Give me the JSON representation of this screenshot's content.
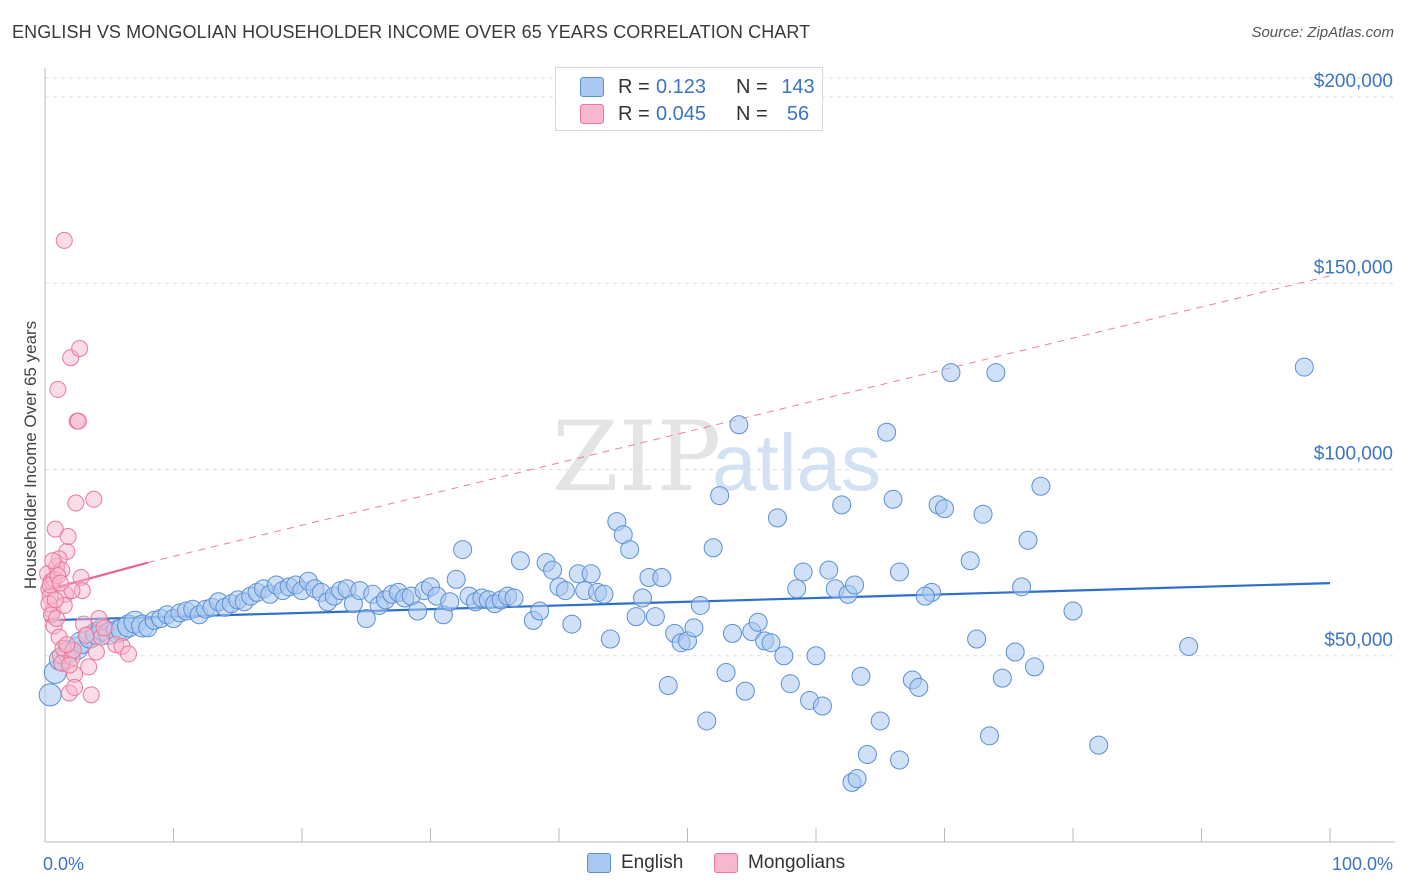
{
  "header": {
    "title": "ENGLISH VS MONGOLIAN HOUSEHOLDER INCOME OVER 65 YEARS CORRELATION CHART",
    "source": "Source: ZipAtlas.com"
  },
  "legend": {
    "rows": [
      {
        "r_label": "R =",
        "r_value": "0.123",
        "n_label": "N =",
        "n_value": "143",
        "color": "#a9c8f0"
      },
      {
        "r_label": "R =",
        "r_value": "0.045",
        "n_label": "N =",
        "n_value": "56",
        "color": "#f8b8cc"
      }
    ]
  },
  "watermark": {
    "zip": "ZIP",
    "atlas": "atlas"
  },
  "colors": {
    "english_fill": "#a9c8f0",
    "english_stroke": "#5b8fd6",
    "english_line": "#2f6fcc",
    "mongolian_fill": "#f8b8cc",
    "mongolian_stroke": "#e9789c",
    "mongolian_line": "#e8608e",
    "axis_text": "#3a74c9",
    "grid": "#dddddd"
  },
  "chart_data": {
    "type": "scatter",
    "title": "ENGLISH VS MONGOLIAN HOUSEHOLDER INCOME OVER 65 YEARS CORRELATION CHART",
    "xlabel": "",
    "ylabel": "Householder Income Over 65 years",
    "xlim": [
      0,
      100
    ],
    "ylim": [
      0,
      200000
    ],
    "x_tick_labels": [
      "0.0%",
      "100.0%"
    ],
    "y_ticks": [
      50000,
      100000,
      150000,
      200000
    ],
    "y_tick_labels": [
      "$50,000",
      "$100,000",
      "$150,000",
      "$200,000"
    ],
    "grid": true,
    "legend_position": "bottom",
    "series": [
      {
        "name": "English",
        "trend": {
          "x": [
            0,
            100
          ],
          "y": [
            59500,
            69500
          ],
          "style": "solid"
        },
        "points": [
          [
            0.4,
            39500
          ],
          [
            0.8,
            45500
          ],
          [
            1.2,
            49000
          ],
          [
            1.8,
            51000
          ],
          [
            2.5,
            52000
          ],
          [
            2.8,
            53500
          ],
          [
            3.5,
            55000
          ],
          [
            4.0,
            56000
          ],
          [
            4.5,
            57000
          ],
          [
            5.0,
            56000
          ],
          [
            5.6,
            56500
          ],
          [
            6.0,
            57000
          ],
          [
            6.5,
            58000
          ],
          [
            7.0,
            59000
          ],
          [
            7.6,
            58000
          ],
          [
            8.0,
            57500
          ],
          [
            8.5,
            59500
          ],
          [
            9.0,
            60000
          ],
          [
            9.5,
            61000
          ],
          [
            10.0,
            60000
          ],
          [
            10.5,
            61500
          ],
          [
            11.0,
            62000
          ],
          [
            11.5,
            62500
          ],
          [
            12.0,
            61000
          ],
          [
            12.5,
            62500
          ],
          [
            13.0,
            63000
          ],
          [
            13.5,
            64500
          ],
          [
            14.0,
            63000
          ],
          [
            14.5,
            64000
          ],
          [
            15.0,
            65000
          ],
          [
            15.5,
            64500
          ],
          [
            16.0,
            66000
          ],
          [
            16.5,
            67000
          ],
          [
            17.0,
            68000
          ],
          [
            17.5,
            66500
          ],
          [
            18.0,
            69000
          ],
          [
            18.5,
            67500
          ],
          [
            19.0,
            68500
          ],
          [
            19.5,
            69000
          ],
          [
            20.0,
            67500
          ],
          [
            20.5,
            70000
          ],
          [
            21.0,
            68000
          ],
          [
            21.5,
            67000
          ],
          [
            22.0,
            64500
          ],
          [
            22.5,
            66000
          ],
          [
            23.0,
            67500
          ],
          [
            23.5,
            68000
          ],
          [
            24.0,
            64000
          ],
          [
            24.5,
            67500
          ],
          [
            25.0,
            60000
          ],
          [
            25.5,
            66500
          ],
          [
            26.0,
            63500
          ],
          [
            26.5,
            65000
          ],
          [
            27.0,
            66500
          ],
          [
            27.5,
            67000
          ],
          [
            28.0,
            65500
          ],
          [
            28.5,
            66000
          ],
          [
            29.0,
            62000
          ],
          [
            29.5,
            67500
          ],
          [
            30.0,
            68500
          ],
          [
            30.5,
            66000
          ],
          [
            31.0,
            61000
          ],
          [
            31.5,
            64500
          ],
          [
            32.0,
            70500
          ],
          [
            32.5,
            78500
          ],
          [
            33.0,
            66000
          ],
          [
            33.5,
            64500
          ],
          [
            34.0,
            65500
          ],
          [
            34.5,
            65000
          ],
          [
            35.0,
            64000
          ],
          [
            35.5,
            65000
          ],
          [
            36.0,
            66000
          ],
          [
            36.5,
            65500
          ],
          [
            37.0,
            75500
          ],
          [
            38.0,
            59500
          ],
          [
            38.5,
            62000
          ],
          [
            39.0,
            75000
          ],
          [
            39.5,
            73000
          ],
          [
            40.0,
            68500
          ],
          [
            40.5,
            67500
          ],
          [
            41.0,
            58500
          ],
          [
            41.5,
            72000
          ],
          [
            42.0,
            67500
          ],
          [
            42.5,
            72000
          ],
          [
            43.0,
            67000
          ],
          [
            43.5,
            66500
          ],
          [
            44.0,
            54500
          ],
          [
            44.5,
            86000
          ],
          [
            45.0,
            82500
          ],
          [
            45.5,
            78500
          ],
          [
            46.0,
            60500
          ],
          [
            46.5,
            65500
          ],
          [
            47.0,
            71000
          ],
          [
            47.5,
            60500
          ],
          [
            48.0,
            71000
          ],
          [
            48.5,
            42000
          ],
          [
            49.0,
            56000
          ],
          [
            49.5,
            53500
          ],
          [
            50.0,
            54000
          ],
          [
            50.5,
            57500
          ],
          [
            51.0,
            63500
          ],
          [
            51.5,
            32500
          ],
          [
            52.0,
            79000
          ],
          [
            52.5,
            93000
          ],
          [
            53.0,
            45500
          ],
          [
            53.5,
            56000
          ],
          [
            54.0,
            112000
          ],
          [
            54.5,
            40500
          ],
          [
            55.0,
            56500
          ],
          [
            55.5,
            59000
          ],
          [
            56.0,
            54000
          ],
          [
            56.5,
            53500
          ],
          [
            57.0,
            87000
          ],
          [
            57.5,
            50000
          ],
          [
            58.0,
            42500
          ],
          [
            58.5,
            68000
          ],
          [
            59.0,
            72500
          ],
          [
            59.5,
            38000
          ],
          [
            60.0,
            50000
          ],
          [
            60.5,
            36500
          ],
          [
            61.0,
            73000
          ],
          [
            61.5,
            68000
          ],
          [
            62.0,
            90500
          ],
          [
            62.5,
            66500
          ],
          [
            63.0,
            69000
          ],
          [
            63.5,
            44500
          ],
          [
            65.0,
            32500
          ],
          [
            65.5,
            110000
          ],
          [
            66.0,
            92000
          ],
          [
            66.5,
            72500
          ],
          [
            67.5,
            43500
          ],
          [
            68.0,
            41500
          ],
          [
            69.0,
            67000
          ],
          [
            69.5,
            90500
          ],
          [
            70.0,
            89500
          ],
          [
            70.5,
            126000
          ],
          [
            68.5,
            66000
          ],
          [
            72.0,
            75500
          ],
          [
            72.5,
            54500
          ],
          [
            73.0,
            88000
          ],
          [
            73.5,
            28500
          ],
          [
            74.0,
            126000
          ],
          [
            74.5,
            44000
          ],
          [
            75.5,
            51000
          ],
          [
            76.0,
            68500
          ],
          [
            77.0,
            47000
          ],
          [
            77.5,
            95500
          ],
          [
            76.5,
            81000
          ],
          [
            80.0,
            62000
          ],
          [
            82.0,
            26000
          ],
          [
            89.0,
            52500
          ],
          [
            98.0,
            127500
          ],
          [
            62.8,
            16000
          ],
          [
            63.2,
            17000
          ],
          [
            64.0,
            23500
          ],
          [
            66.5,
            22000
          ]
        ]
      },
      {
        "name": "Mongolians",
        "trend": {
          "x": [
            0,
            8
          ],
          "y": [
            67500,
            75000
          ],
          "style": "solid",
          "extended": {
            "x": [
              8,
              100
            ],
            "y": [
              75000,
              152000
            ],
            "style": "dashed"
          }
        },
        "points": [
          [
            0.2,
            72000
          ],
          [
            0.3,
            68000
          ],
          [
            0.4,
            66000
          ],
          [
            0.5,
            70000
          ],
          [
            0.6,
            62000
          ],
          [
            0.7,
            58000
          ],
          [
            0.8,
            84000
          ],
          [
            0.9,
            74000
          ],
          [
            1.0,
            121500
          ],
          [
            1.1,
            55000
          ],
          [
            1.2,
            50000
          ],
          [
            1.3,
            48000
          ],
          [
            1.4,
            52000
          ],
          [
            1.5,
            161500
          ],
          [
            1.6,
            66500
          ],
          [
            1.7,
            78000
          ],
          [
            1.8,
            82000
          ],
          [
            1.9,
            40000
          ],
          [
            2.0,
            130000
          ],
          [
            2.1,
            49500
          ],
          [
            2.2,
            51500
          ],
          [
            2.3,
            45000
          ],
          [
            2.4,
            91000
          ],
          [
            2.5,
            113000
          ],
          [
            2.6,
            113000
          ],
          [
            2.7,
            132500
          ],
          [
            2.8,
            71000
          ],
          [
            2.9,
            67500
          ],
          [
            3.0,
            58500
          ],
          [
            3.2,
            55500
          ],
          [
            3.4,
            47000
          ],
          [
            3.6,
            39500
          ],
          [
            3.8,
            92000
          ],
          [
            4.0,
            51000
          ],
          [
            4.2,
            60000
          ],
          [
            4.4,
            55000
          ],
          [
            4.6,
            57500
          ],
          [
            5.5,
            53000
          ],
          [
            6.0,
            52500
          ],
          [
            6.5,
            50500
          ],
          [
            0.3,
            64000
          ],
          [
            0.5,
            61000
          ],
          [
            0.7,
            70500
          ],
          [
            0.9,
            60000
          ],
          [
            1.1,
            76000
          ],
          [
            1.3,
            73000
          ],
          [
            1.5,
            63500
          ],
          [
            1.7,
            53000
          ],
          [
            1.9,
            47500
          ],
          [
            2.1,
            67500
          ],
          [
            2.3,
            41500
          ],
          [
            0.4,
            69000
          ],
          [
            0.6,
            75500
          ],
          [
            0.8,
            65000
          ],
          [
            1.0,
            71500
          ],
          [
            1.2,
            69500
          ]
        ]
      }
    ]
  }
}
